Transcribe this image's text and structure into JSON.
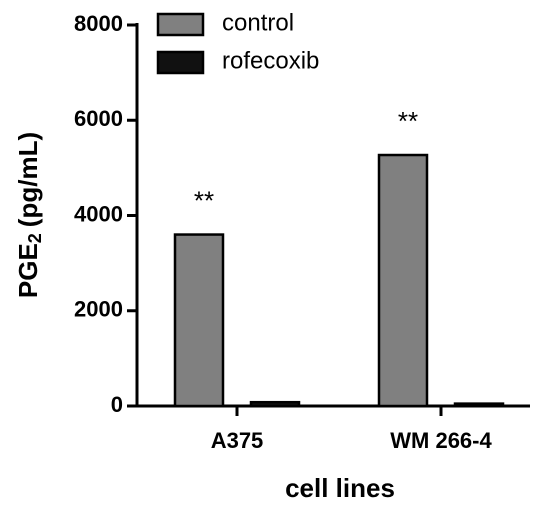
{
  "chart_data": {
    "type": "bar",
    "ylabel": {
      "main": "PGE",
      "sub": "2",
      "unit": "(pg/mL)"
    },
    "xlabel": "cell lines",
    "categories": [
      "A375",
      "WM 266-4"
    ],
    "series": [
      {
        "name": "control",
        "color": "#808080",
        "values": [
          3600,
          5270
        ]
      },
      {
        "name": "rofecoxib",
        "color": "#111111",
        "values": [
          80,
          50
        ]
      }
    ],
    "annotations": [
      "**",
      "**"
    ],
    "ylim": [
      0,
      8000
    ],
    "yticks": [
      0,
      2000,
      4000,
      6000,
      8000
    ]
  }
}
